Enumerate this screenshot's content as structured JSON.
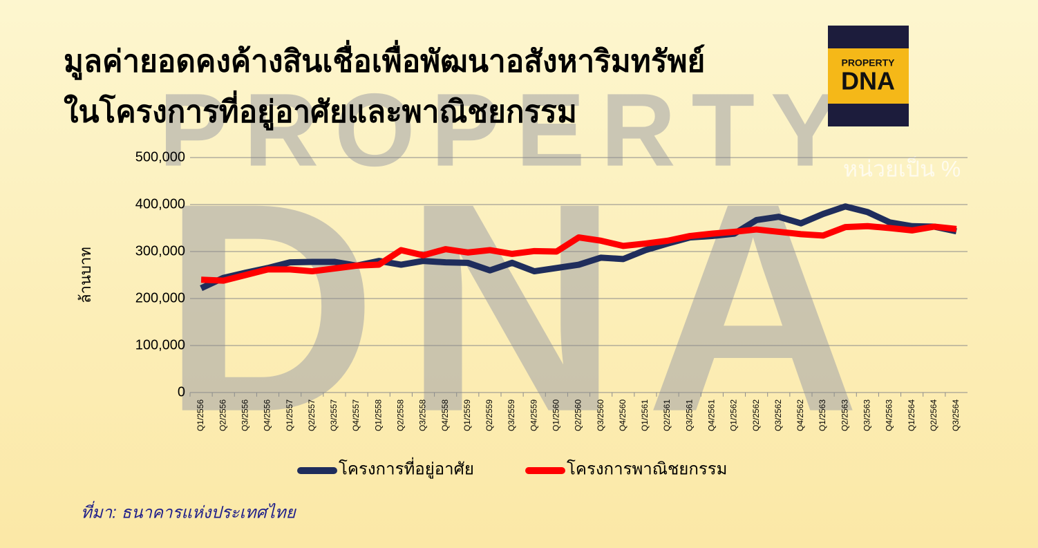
{
  "chart_data": {
    "type": "line",
    "title": [
      "มูลค่ายอดคงค้างสินเชื่อเพื่อพัฒนาอสังหาริมทรัพย์",
      "ในโครงการที่อยู่อาศัยและพาณิชยกรรม"
    ],
    "y_label": "ล้านบาท",
    "annotation": "หน่วยเป็น %",
    "source": "ที่มา: ธนาคารแห่งประเทศไทย",
    "watermark": [
      "PROPERTY",
      "DNA"
    ],
    "logo": [
      "PROPERTY",
      "DNA"
    ],
    "categories": [
      "Q1/2556",
      "Q2/2556",
      "Q3/2556",
      "Q4/2556",
      "Q1/2557",
      "Q2/2557",
      "Q3/2557",
      "Q4/2557",
      "Q1/2558",
      "Q2/2558",
      "Q3/2558",
      "Q4/2558",
      "Q1/2559",
      "Q2/2559",
      "Q3/2559",
      "Q4/2559",
      "Q1/2560",
      "Q2/2560",
      "Q3/2560",
      "Q4/2560",
      "Q1/2561",
      "Q2/2561",
      "Q3/2561",
      "Q4/2561",
      "Q1/2562",
      "Q2/2562",
      "Q3/2562",
      "Q4/2562",
      "Q1/2563",
      "Q2/2563",
      "Q3/2563",
      "Q4/2563",
      "Q1/2564",
      "Q2/2564",
      "Q3/2564"
    ],
    "series": [
      {
        "name": "โครงการที่อยู่อาศัย",
        "color": "#1f2d5c",
        "values": [
          222000,
          244000,
          255000,
          265000,
          277000,
          278000,
          278000,
          270000,
          280000,
          272000,
          280000,
          277000,
          276000,
          260000,
          276000,
          258000,
          265000,
          272000,
          287000,
          284000,
          303000,
          317000,
          330000,
          333000,
          338000,
          367000,
          374000,
          360000,
          380000,
          396000,
          384000,
          362000,
          354000,
          353000,
          343000
        ]
      },
      {
        "name": "โครงการพาณิชยกรรม",
        "color": "#ff0000",
        "values": [
          240000,
          238000,
          250000,
          262000,
          262000,
          258000,
          264000,
          270000,
          272000,
          303000,
          292000,
          305000,
          298000,
          303000,
          295000,
          301000,
          300000,
          330000,
          323000,
          312000,
          317000,
          323000,
          333000,
          338000,
          342000,
          347000,
          342000,
          337000,
          334000,
          352000,
          354000,
          350000,
          345000,
          353000,
          348000
        ]
      }
    ],
    "ylim": [
      0,
      500000
    ],
    "yticks": [
      0,
      {
        "value": 100000,
        "label": "100,000"
      },
      {
        "value": 200000,
        "label": "200,000"
      },
      {
        "value": 300000,
        "label": "300,000"
      },
      {
        "value": 400000,
        "label": "400,000"
      },
      {
        "value": 500000,
        "label": "500,000"
      }
    ],
    "grid": true
  }
}
